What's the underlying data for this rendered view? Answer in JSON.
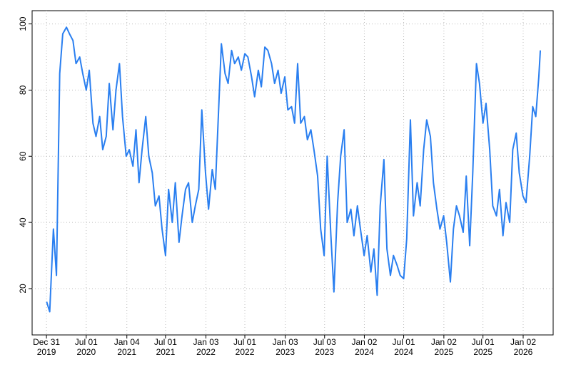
{
  "chart_data": {
    "type": "line",
    "color": "#2a7ff0",
    "grid": true,
    "x": [
      "2020-01-01",
      "2020-01-15",
      "2020-02-01",
      "2020-02-15",
      "2020-03-01",
      "2020-03-15",
      "2020-04-01",
      "2020-04-15",
      "2020-05-01",
      "2020-05-15",
      "2020-06-01",
      "2020-06-15",
      "2020-07-01",
      "2020-07-15",
      "2020-08-01",
      "2020-08-15",
      "2020-09-01",
      "2020-09-15",
      "2020-10-01",
      "2020-10-15",
      "2020-11-01",
      "2020-11-15",
      "2020-12-01",
      "2020-12-15",
      "2021-01-01",
      "2021-01-15",
      "2021-02-01",
      "2021-02-15",
      "2021-03-01",
      "2021-03-15",
      "2021-04-01",
      "2021-04-15",
      "2021-05-01",
      "2021-05-15",
      "2021-06-01",
      "2021-06-15",
      "2021-07-01",
      "2021-07-15",
      "2021-08-01",
      "2021-08-15",
      "2021-09-01",
      "2021-09-15",
      "2021-10-01",
      "2021-10-15",
      "2021-11-01",
      "2021-11-15",
      "2021-12-01",
      "2021-12-15",
      "2022-01-01",
      "2022-01-15",
      "2022-02-01",
      "2022-02-15",
      "2022-03-01",
      "2022-03-15",
      "2022-04-01",
      "2022-04-15",
      "2022-05-01",
      "2022-05-15",
      "2022-06-01",
      "2022-06-15",
      "2022-07-01",
      "2022-07-15",
      "2022-08-01",
      "2022-08-15",
      "2022-09-01",
      "2022-09-15",
      "2022-10-01",
      "2022-10-15",
      "2022-11-01",
      "2022-11-15",
      "2022-12-01",
      "2022-12-15",
      "2023-01-01",
      "2023-01-15",
      "2023-02-01",
      "2023-02-15",
      "2023-03-01",
      "2023-03-15",
      "2023-04-01",
      "2023-04-15",
      "2023-05-01",
      "2023-05-15",
      "2023-06-01",
      "2023-06-15",
      "2023-07-01",
      "2023-07-15",
      "2023-08-01",
      "2023-08-15",
      "2023-09-01",
      "2023-09-15",
      "2023-10-01",
      "2023-10-15",
      "2023-11-01",
      "2023-11-15",
      "2023-12-01",
      "2023-12-15",
      "2024-01-01",
      "2024-01-15",
      "2024-02-01",
      "2024-02-15",
      "2024-03-01",
      "2024-03-15",
      "2024-04-01",
      "2024-04-15",
      "2024-05-01",
      "2024-05-15",
      "2024-06-01",
      "2024-06-15",
      "2024-07-01",
      "2024-07-15",
      "2024-08-01",
      "2024-08-15",
      "2024-09-01",
      "2024-09-15",
      "2024-10-01",
      "2024-10-15",
      "2024-11-01",
      "2024-11-15",
      "2024-12-01",
      "2024-12-15",
      "2025-01-01",
      "2025-01-15",
      "2025-02-01",
      "2025-02-15",
      "2025-03-01",
      "2025-03-15",
      "2025-04-01",
      "2025-04-15",
      "2025-05-01",
      "2025-05-15",
      "2025-06-01",
      "2025-06-15",
      "2025-07-01",
      "2025-07-15",
      "2025-08-01",
      "2025-08-15",
      "2025-09-01",
      "2025-09-15",
      "2025-10-01",
      "2025-10-15",
      "2025-11-01",
      "2025-11-15",
      "2025-12-01",
      "2025-12-15",
      "2026-01-01",
      "2026-01-15",
      "2026-02-01",
      "2026-02-15",
      "2026-03-01",
      "2026-03-15",
      "2026-03-22"
    ],
    "values": [
      16,
      13,
      38,
      24,
      85,
      97,
      99,
      97,
      95,
      88,
      90,
      85,
      80,
      86,
      70,
      66,
      72,
      62,
      66,
      82,
      68,
      80,
      88,
      72,
      60,
      62,
      57,
      68,
      52,
      62,
      72,
      60,
      55,
      45,
      48,
      38,
      30,
      50,
      40,
      52,
      34,
      42,
      50,
      52,
      40,
      45,
      50,
      74,
      55,
      44,
      56,
      50,
      72,
      94,
      85,
      82,
      92,
      88,
      90,
      86,
      91,
      90,
      84,
      78,
      86,
      81,
      93,
      92,
      88,
      82,
      86,
      79,
      84,
      74,
      75,
      70,
      88,
      70,
      72,
      65,
      68,
      62,
      54,
      38,
      30,
      60,
      36,
      19,
      46,
      60,
      68,
      40,
      44,
      36,
      45,
      38,
      30,
      36,
      25,
      32,
      18,
      45,
      59,
      32,
      24,
      30,
      27,
      24,
      23,
      35,
      71,
      42,
      52,
      45,
      62,
      71,
      66,
      52,
      44,
      38,
      42,
      34,
      22,
      38,
      45,
      42,
      37,
      54,
      33,
      55,
      88,
      82,
      70,
      76,
      62,
      45,
      42,
      50,
      36,
      46,
      40,
      62,
      67,
      55,
      48,
      46,
      60,
      75,
      72,
      84,
      92
    ],
    "xlim": [
      "2019-10-26",
      "2026-05-20"
    ],
    "xticks": [
      {
        "value": "2019-12-31",
        "label": "Dec 31\n2019"
      },
      {
        "value": "2020-07-01",
        "label": "Jul 01\n2020"
      },
      {
        "value": "2021-01-04",
        "label": "Jan 04\n2021"
      },
      {
        "value": "2021-07-01",
        "label": "Jul 01\n2021"
      },
      {
        "value": "2022-01-03",
        "label": "Jan 03\n2022"
      },
      {
        "value": "2022-07-01",
        "label": "Jul 01\n2022"
      },
      {
        "value": "2023-01-03",
        "label": "Jan 03\n2023"
      },
      {
        "value": "2023-07-03",
        "label": "Jul 03\n2023"
      },
      {
        "value": "2024-01-02",
        "label": "Jan 02\n2024"
      },
      {
        "value": "2024-07-01",
        "label": "Jul 01\n2024"
      },
      {
        "value": "2025-01-02",
        "label": "Jan 02\n2025"
      },
      {
        "value": "2025-07-01",
        "label": "Jul 01\n2025"
      },
      {
        "value": "2026-01-02",
        "label": "Jan 02\n2026"
      }
    ],
    "ylim": [
      6,
      104
    ],
    "yticks": [
      20,
      40,
      60,
      80,
      100
    ]
  }
}
